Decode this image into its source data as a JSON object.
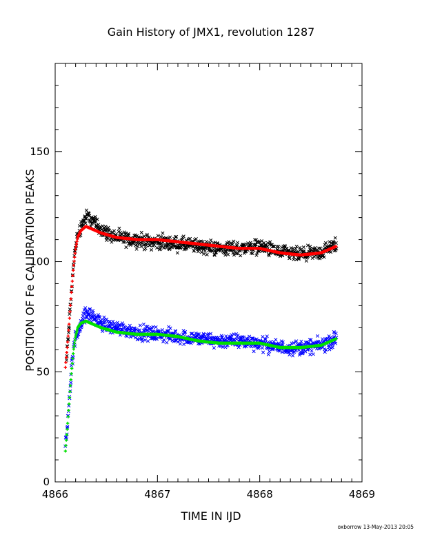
{
  "chart_data": {
    "type": "scatter",
    "title": "Gain History of JMX1, revolution 1287",
    "xlabel": "TIME IN IJD",
    "ylabel": "POSITION OF Fe CALIBRATION PEAKS",
    "xlim": [
      4866,
      4869
    ],
    "ylim": [
      0,
      190
    ],
    "xticks": [
      "4866",
      "4867",
      "4868",
      "4869"
    ],
    "yticks": [
      "0",
      "50",
      "100",
      "150"
    ],
    "footer": "oxborrow 13-May-2013 20:05",
    "grid": false,
    "series": [
      {
        "marker": "x",
        "color": "#000000",
        "x": [
          4866.11,
          4866.14,
          4866.17,
          4866.2,
          4866.23,
          4866.27,
          4866.32,
          4866.37,
          4866.42,
          4866.5,
          4866.6,
          4866.7,
          4866.8,
          4866.9,
          4867.0,
          4867.2,
          4867.4,
          4867.6,
          4867.8,
          4868.0,
          4868.2,
          4868.4,
          4868.6,
          4868.75
        ],
        "y": [
          55,
          73,
          93,
          108,
          113,
          118,
          121,
          118,
          116,
          113,
          111,
          110,
          110,
          109,
          109,
          108,
          107,
          106,
          106,
          107,
          104,
          103,
          104,
          108
        ]
      },
      {
        "marker": "+",
        "color": "#ff0000",
        "x": [
          4866.1,
          4866.12,
          4866.14,
          4866.16,
          4866.18,
          4866.2,
          4866.22,
          4866.25,
          4866.3,
          4866.35,
          4866.45,
          4866.6,
          4866.8,
          4867.0,
          4867.2,
          4867.4,
          4867.6,
          4867.8,
          4868.0,
          4868.2,
          4868.4,
          4868.6,
          4868.75
        ],
        "y": [
          52,
          62,
          74,
          87,
          98,
          106,
          111,
          114,
          116,
          115,
          113,
          111,
          110,
          110,
          109,
          108,
          107,
          106,
          106,
          104,
          103,
          104,
          107
        ]
      },
      {
        "marker": "x",
        "color": "#0000ff",
        "x": [
          4866.1,
          4866.13,
          4866.16,
          4866.2,
          4866.25,
          4866.3,
          4866.35,
          4866.42,
          4866.5,
          4866.6,
          4866.7,
          4866.8,
          4867.0,
          4867.2,
          4867.4,
          4867.6,
          4867.8,
          4868.0,
          4868.2,
          4868.4,
          4868.6,
          4868.75
        ],
        "y": [
          15,
          32,
          52,
          66,
          72,
          76,
          76,
          73,
          71,
          70,
          69,
          68,
          67,
          66,
          65,
          64,
          64,
          63,
          61,
          61,
          62,
          65
        ]
      },
      {
        "marker": "+",
        "color": "#00e000",
        "x": [
          4866.1,
          4866.12,
          4866.14,
          4866.16,
          4866.18,
          4866.2,
          4866.22,
          4866.25,
          4866.3,
          4866.35,
          4866.45,
          4866.6,
          4866.8,
          4867.0,
          4867.2,
          4867.4,
          4867.6,
          4867.8,
          4868.0,
          4868.2,
          4868.4,
          4868.6,
          4868.75
        ],
        "y": [
          14,
          25,
          38,
          50,
          60,
          66,
          70,
          72,
          73,
          72,
          70,
          68,
          67,
          67,
          66,
          64,
          63,
          63,
          63,
          61,
          61,
          62,
          65
        ]
      }
    ]
  }
}
